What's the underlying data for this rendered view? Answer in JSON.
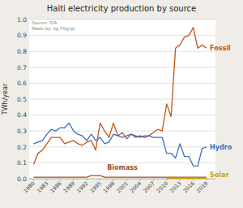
{
  "chart_data": {
    "type": "line",
    "title": "Haiti electricity production by source",
    "y_label": "TWh/year",
    "annotations": [
      "Source: EIA\nMade by: kg f/kg/gc"
    ],
    "x": [
      1980,
      1981,
      1982,
      1983,
      1984,
      1985,
      1986,
      1987,
      1988,
      1989,
      1990,
      1991,
      1992,
      1993,
      1994,
      1995,
      1996,
      1997,
      1998,
      1999,
      2000,
      2001,
      2002,
      2003,
      2004,
      2005,
      2006,
      2007,
      2008,
      2009,
      2010,
      2011,
      2012,
      2013,
      2014,
      2015,
      2016,
      2017,
      2018,
      2019
    ],
    "series": [
      {
        "name": "Fossil",
        "color": "#c0551a",
        "values": [
          0.09,
          0.16,
          0.18,
          0.22,
          0.26,
          0.26,
          0.26,
          0.22,
          0.23,
          0.24,
          0.22,
          0.21,
          0.23,
          0.24,
          0.18,
          0.35,
          0.3,
          0.26,
          0.35,
          0.27,
          0.29,
          0.25,
          0.28,
          0.27,
          0.26,
          0.27,
          0.27,
          0.29,
          0.31,
          0.3,
          0.47,
          0.39,
          0.82,
          0.84,
          0.89,
          0.9,
          0.95,
          0.82,
          0.84,
          0.82
        ]
      },
      {
        "name": "Hydro",
        "color": "#3a6ec0",
        "values": [
          0.22,
          0.23,
          0.24,
          0.28,
          0.31,
          0.3,
          0.32,
          0.32,
          0.35,
          0.3,
          0.28,
          0.27,
          0.24,
          0.28,
          0.24,
          0.26,
          0.22,
          0.23,
          0.28,
          0.27,
          0.26,
          0.27,
          0.28,
          0.26,
          0.27,
          0.26,
          0.27,
          0.26,
          0.26,
          0.26,
          0.16,
          0.16,
          0.13,
          0.22,
          0.14,
          0.14,
          0.08,
          0.08,
          0.19,
          0.2
        ]
      },
      {
        "name": "Biomass",
        "color": "#a0521a",
        "values": [
          0.01,
          0.01,
          0.01,
          0.01,
          0.01,
          0.01,
          0.01,
          0.01,
          0.01,
          0.01,
          0.01,
          0.01,
          0.01,
          0.02,
          0.02,
          0.02,
          0.01,
          0.01,
          0.01,
          0.01,
          0.01,
          0.01,
          0.01,
          0.01,
          0.01,
          0.01,
          0.01,
          0.01,
          0.01,
          0.01,
          0.01,
          0.01,
          0.01,
          0.01,
          0.01,
          0.01,
          0.01,
          0.01,
          0.01,
          0.01
        ]
      },
      {
        "name": "Solar",
        "color": "#c8a000",
        "values": [
          null,
          null,
          null,
          null,
          null,
          null,
          null,
          null,
          null,
          null,
          null,
          null,
          null,
          null,
          null,
          null,
          null,
          null,
          null,
          null,
          null,
          null,
          null,
          null,
          null,
          null,
          null,
          null,
          null,
          null,
          0.003,
          0.003,
          0.003,
          0.003,
          0.003,
          0.003,
          0.003,
          0.003,
          0.003,
          0.003
        ]
      }
    ],
    "xlim": [
      1979,
      2021
    ],
    "xticks": [
      1980,
      1983,
      1986,
      1989,
      1992,
      1995,
      1998,
      2001,
      2004,
      2007,
      2010,
      2013,
      2016,
      2019
    ],
    "ylim": [
      0,
      1.0
    ],
    "yticks": [
      {
        "value": 0,
        "label": "0.0"
      },
      0.1,
      0.2,
      0.3,
      0.4,
      0.5,
      0.6,
      0.7,
      0.8,
      0.9,
      {
        "value": 1,
        "label": "1.0"
      }
    ],
    "grid": true
  }
}
